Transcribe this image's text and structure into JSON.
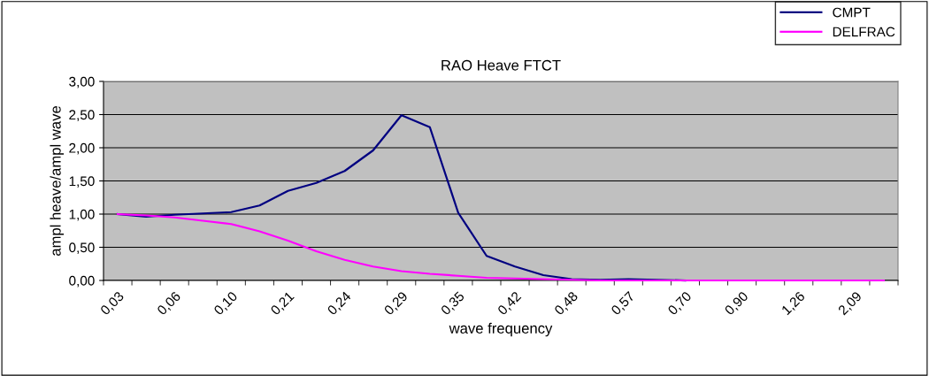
{
  "chart_data": {
    "type": "line",
    "title": "RAO Heave FTCT",
    "xlabel": "wave frequency",
    "ylabel": "ampl heave/ampl wave",
    "categories": [
      "0,03",
      null,
      "0,06",
      null,
      "0,10",
      null,
      "0,21",
      null,
      "0,24",
      null,
      "0,29",
      null,
      "0,35",
      null,
      "0,42",
      null,
      "0,48",
      null,
      "0,57",
      null,
      "0,70",
      null,
      "0,90",
      null,
      "1,26",
      null,
      "2,09",
      null
    ],
    "series": [
      {
        "name": "CMPT",
        "color": "#000080",
        "values": [
          1.0,
          0.96,
          0.99,
          1.01,
          1.03,
          1.13,
          1.35,
          1.47,
          1.65,
          1.96,
          2.49,
          2.31,
          1.02,
          0.37,
          0.21,
          0.08,
          0.02,
          0.01,
          0.02,
          0.01,
          0.0,
          null,
          null,
          null,
          null,
          null,
          null,
          null
        ]
      },
      {
        "name": "DELFRAC",
        "color": "#ff00ff",
        "values": [
          1.0,
          0.98,
          0.95,
          0.9,
          0.85,
          0.74,
          0.6,
          0.44,
          0.31,
          0.21,
          0.14,
          0.1,
          0.07,
          0.04,
          0.03,
          0.02,
          0.01,
          0.0,
          0.0,
          0.0,
          0.0,
          0.0,
          0.0,
          0.0,
          0.0,
          0.0,
          0.0,
          0.0
        ]
      }
    ],
    "ylim": [
      0,
      3
    ],
    "yticks": [
      {
        "value": 0,
        "label": "0,00"
      },
      {
        "value": 0.5,
        "label": "0,50"
      },
      {
        "value": 1,
        "label": "1,00"
      },
      {
        "value": 1.5,
        "label": "1,50"
      },
      {
        "value": 2,
        "label": "2,00"
      },
      {
        "value": 2.5,
        "label": "2,50"
      },
      {
        "value": 3,
        "label": "3,00"
      }
    ],
    "grid": "y",
    "legend": "top right",
    "marker": "none",
    "line_style": "solid"
  }
}
